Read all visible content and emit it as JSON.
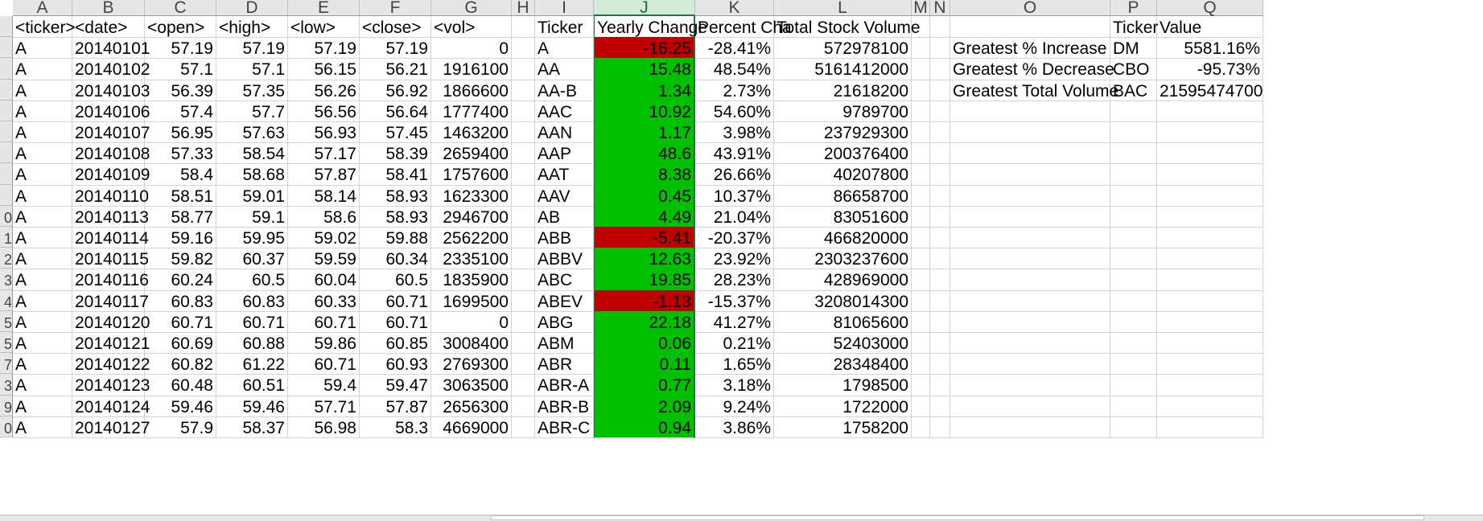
{
  "columns": [
    "A",
    "B",
    "C",
    "D",
    "E",
    "F",
    "G",
    "H",
    "I",
    "J",
    "K",
    "L",
    "M",
    "N",
    "O",
    "P",
    "Q"
  ],
  "row_numbers": [
    "",
    "",
    "",
    "",
    "",
    "",
    "",
    "",
    "",
    "0",
    "1",
    "2",
    "3",
    "4",
    "5",
    "5",
    "7",
    "3",
    "9",
    "0"
  ],
  "headers": {
    "ticker": "<ticker>",
    "date": "<date>",
    "open": "<open>",
    "high": "<high>",
    "low": "<low>",
    "close": "<close>",
    "vol": "<vol>",
    "summary_ticker": "Ticker",
    "yearly_change": "Yearly Change",
    "percent_change": "Percent Cha",
    "total_volume": "Total Stock Volume"
  },
  "raw_rows": [
    [
      "A",
      "20140101",
      "57.19",
      "57.19",
      "57.19",
      "57.19",
      "0"
    ],
    [
      "A",
      "20140102",
      "57.1",
      "57.1",
      "56.15",
      "56.21",
      "1916100"
    ],
    [
      "A",
      "20140103",
      "56.39",
      "57.35",
      "56.26",
      "56.92",
      "1866600"
    ],
    [
      "A",
      "20140106",
      "57.4",
      "57.7",
      "56.56",
      "56.64",
      "1777400"
    ],
    [
      "A",
      "20140107",
      "56.95",
      "57.63",
      "56.93",
      "57.45",
      "1463200"
    ],
    [
      "A",
      "20140108",
      "57.33",
      "58.54",
      "57.17",
      "58.39",
      "2659400"
    ],
    [
      "A",
      "20140109",
      "58.4",
      "58.68",
      "57.87",
      "58.41",
      "1757600"
    ],
    [
      "A",
      "20140110",
      "58.51",
      "59.01",
      "58.14",
      "58.93",
      "1623300"
    ],
    [
      "A",
      "20140113",
      "58.77",
      "59.1",
      "58.6",
      "58.93",
      "2946700"
    ],
    [
      "A",
      "20140114",
      "59.16",
      "59.95",
      "59.02",
      "59.88",
      "2562200"
    ],
    [
      "A",
      "20140115",
      "59.82",
      "60.37",
      "59.59",
      "60.34",
      "2335100"
    ],
    [
      "A",
      "20140116",
      "60.24",
      "60.5",
      "60.04",
      "60.5",
      "1835900"
    ],
    [
      "A",
      "20140117",
      "60.83",
      "60.83",
      "60.33",
      "60.71",
      "1699500"
    ],
    [
      "A",
      "20140120",
      "60.71",
      "60.71",
      "60.71",
      "60.71",
      "0"
    ],
    [
      "A",
      "20140121",
      "60.69",
      "60.88",
      "59.86",
      "60.85",
      "3008400"
    ],
    [
      "A",
      "20140122",
      "60.82",
      "61.22",
      "60.71",
      "60.93",
      "2769300"
    ],
    [
      "A",
      "20140123",
      "60.48",
      "60.51",
      "59.4",
      "59.47",
      "3063500"
    ],
    [
      "A",
      "20140124",
      "59.46",
      "59.46",
      "57.71",
      "57.87",
      "2656300"
    ],
    [
      "A",
      "20140127",
      "57.9",
      "58.37",
      "56.98",
      "58.3",
      "4669000"
    ]
  ],
  "summary_rows": [
    {
      "ticker": "A",
      "change": "-16.25",
      "pct": "-28.41%",
      "volume": "572978100",
      "status": "negative"
    },
    {
      "ticker": "AA",
      "change": "15.48",
      "pct": "48.54%",
      "volume": "5161412000",
      "status": "positive"
    },
    {
      "ticker": "AA-B",
      "change": "1.34",
      "pct": "2.73%",
      "volume": "21618200",
      "status": "positive"
    },
    {
      "ticker": "AAC",
      "change": "10.92",
      "pct": "54.60%",
      "volume": "9789700",
      "status": "positive"
    },
    {
      "ticker": "AAN",
      "change": "1.17",
      "pct": "3.98%",
      "volume": "237929300",
      "status": "positive"
    },
    {
      "ticker": "AAP",
      "change": "48.6",
      "pct": "43.91%",
      "volume": "200376400",
      "status": "positive"
    },
    {
      "ticker": "AAT",
      "change": "8.38",
      "pct": "26.66%",
      "volume": "40207800",
      "status": "positive"
    },
    {
      "ticker": "AAV",
      "change": "0.45",
      "pct": "10.37%",
      "volume": "86658700",
      "status": "positive"
    },
    {
      "ticker": "AB",
      "change": "4.49",
      "pct": "21.04%",
      "volume": "83051600",
      "status": "positive"
    },
    {
      "ticker": "ABB",
      "change": "-5.41",
      "pct": "-20.37%",
      "volume": "466820000",
      "status": "negative"
    },
    {
      "ticker": "ABBV",
      "change": "12.63",
      "pct": "23.92%",
      "volume": "2303237600",
      "status": "positive"
    },
    {
      "ticker": "ABC",
      "change": "19.85",
      "pct": "28.23%",
      "volume": "428969000",
      "status": "positive"
    },
    {
      "ticker": "ABEV",
      "change": "-1.13",
      "pct": "-15.37%",
      "volume": "3208014300",
      "status": "negative"
    },
    {
      "ticker": "ABG",
      "change": "22.18",
      "pct": "41.27%",
      "volume": "81065600",
      "status": "positive"
    },
    {
      "ticker": "ABM",
      "change": "0.06",
      "pct": "0.21%",
      "volume": "52403000",
      "status": "positive"
    },
    {
      "ticker": "ABR",
      "change": "0.11",
      "pct": "1.65%",
      "volume": "28348400",
      "status": "positive"
    },
    {
      "ticker": "ABR-A",
      "change": "0.77",
      "pct": "3.18%",
      "volume": "1798500",
      "status": "positive"
    },
    {
      "ticker": "ABR-B",
      "change": "2.09",
      "pct": "9.24%",
      "volume": "1722000",
      "status": "positive"
    },
    {
      "ticker": "ABR-C",
      "change": "0.94",
      "pct": "3.86%",
      "volume": "1758200",
      "status": "positive"
    }
  ],
  "greatest": {
    "ticker_header": "Ticker",
    "value_header": "Value",
    "rows": [
      {
        "label": "Greatest % Increase",
        "ticker": "DM",
        "value": "5581.16%"
      },
      {
        "label": "Greatest % Decrease",
        "ticker": "CBO",
        "value": "-95.73%"
      },
      {
        "label": "Greatest Total Volume",
        "ticker": "BAC",
        "value": "21595474700"
      }
    ]
  },
  "colors": {
    "negative": "#c00000",
    "positive": "#00c000",
    "selected_header": "#d3ebd9"
  }
}
